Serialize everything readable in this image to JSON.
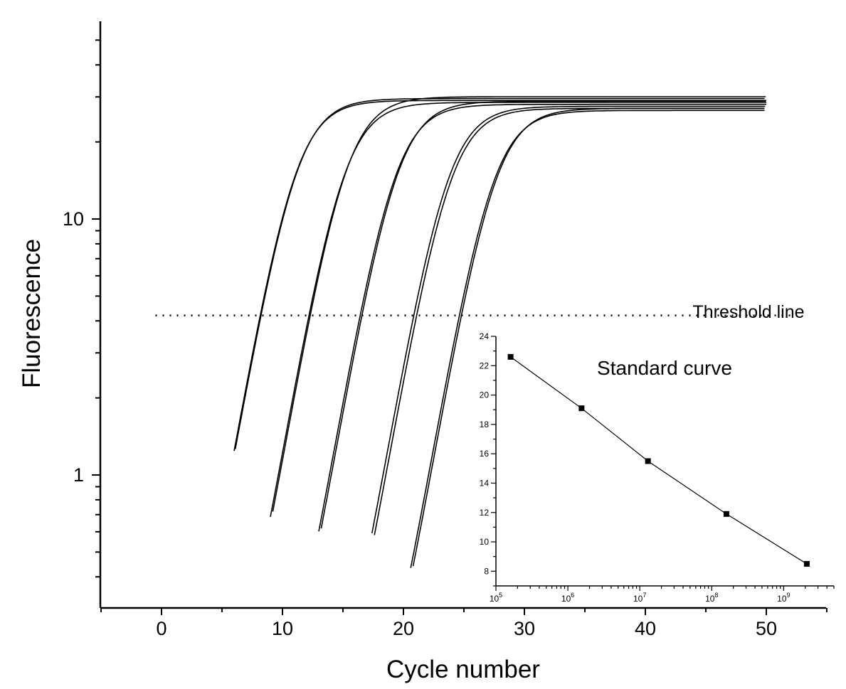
{
  "chart_data": [
    {
      "type": "line",
      "title": "",
      "xlabel": "Cycle number",
      "ylabel": "Fluorescence",
      "xlim": [
        -5,
        55
      ],
      "ylim": [
        0.31,
        44
      ],
      "yscale": "log",
      "xticks": [
        0,
        10,
        20,
        30,
        40,
        50
      ],
      "xtick_labels": [
        "0",
        "10",
        "20",
        "30",
        "40",
        "50"
      ],
      "yticks": [
        1,
        10
      ],
      "ytick_labels": [
        "1",
        "10"
      ],
      "grid": false,
      "threshold": {
        "label": "Threshold line",
        "y": 4.2,
        "x_range": [
          -0.5,
          52.5
        ]
      },
      "series": [
        {
          "midpoint": 11.0,
          "plateau": 29,
          "baseline_cycle": 6.0
        },
        {
          "midpoint": 11.1,
          "plateau": 29.5,
          "baseline_cycle": 6.1
        },
        {
          "midpoint": 15.0,
          "plateau": 28.5,
          "baseline_cycle": 9.0
        },
        {
          "midpoint": 15.2,
          "plateau": 30,
          "baseline_cycle": 9.2
        },
        {
          "midpoint": 19.2,
          "plateau": 28,
          "baseline_cycle": 13.0
        },
        {
          "midpoint": 19.4,
          "plateau": 28.8,
          "baseline_cycle": 13.2
        },
        {
          "midpoint": 23.6,
          "plateau": 27.5,
          "baseline_cycle": 17.4
        },
        {
          "midpoint": 23.8,
          "plateau": 27,
          "baseline_cycle": 17.6
        },
        {
          "midpoint": 27.3,
          "plateau": 26.5,
          "baseline_cycle": 20.6
        },
        {
          "midpoint": 27.5,
          "plateau": 27,
          "baseline_cycle": 20.8
        }
      ]
    },
    {
      "type": "scatter",
      "title": "Standard curve",
      "xscale": "log",
      "xlim": [
        100000,
        5000000000
      ],
      "ylim": [
        7,
        24
      ],
      "xtick_labels": [
        {
          "base": "10",
          "exp": "5"
        },
        {
          "base": "10",
          "exp": "6"
        },
        {
          "base": "10",
          "exp": "7"
        },
        {
          "base": "10",
          "exp": "8"
        },
        {
          "base": "10",
          "exp": "9"
        }
      ],
      "yticks": [
        8,
        10,
        12,
        14,
        16,
        18,
        20,
        22,
        24
      ],
      "ytick_labels": [
        "8",
        "10",
        "12",
        "14",
        "16",
        "18",
        "20",
        "22",
        "24"
      ],
      "x": [
        160000,
        1550000,
        13000000,
        160000000,
        2100000000
      ],
      "y": [
        22.6,
        19.1,
        15.5,
        11.9,
        8.5
      ],
      "fit_line": true
    }
  ]
}
